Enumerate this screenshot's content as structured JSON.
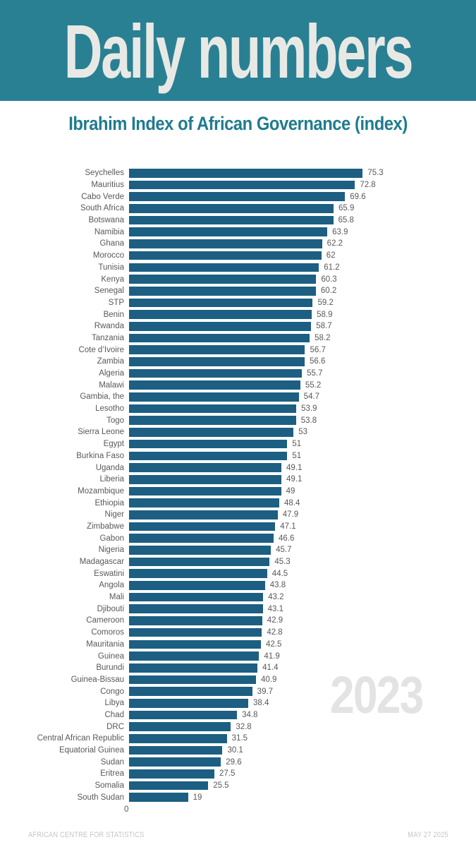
{
  "header": {
    "title": "Daily numbers"
  },
  "subtitle": "Ibrahim Index of African Governance (index)",
  "watermark": "2023",
  "axis": {
    "zero_label": "0"
  },
  "footer": {
    "source": "AFRICAN CENTRE FOR STATISTICS",
    "date": "MAY 27 2025"
  },
  "colors": {
    "header_bg": "#2a8093",
    "title_text": "#e8e9e5",
    "subtitle_text": "#1f7b8e",
    "bar": "#1c5f82",
    "label_text": "#595959",
    "watermark_text": "#e3e3e3",
    "footer_text": "#c6c6c6"
  },
  "chart_data": {
    "type": "bar",
    "orientation": "horizontal",
    "title": "Ibrahim Index of African Governance (index)",
    "xlabel": "",
    "ylabel": "",
    "xlim": [
      0,
      80
    ],
    "grid": false,
    "legend": false,
    "value_labels_shown": true,
    "categories": [
      "Seychelles",
      "Mauritius",
      "Cabo Verde",
      "South Africa",
      "Botswana",
      "Namibia",
      "Ghana",
      "Morocco",
      "Tunisia",
      "Kenya",
      "Senegal",
      "STP",
      "Benin",
      "Rwanda",
      "Tanzania",
      "Cote d’Ivoire",
      "Zambia",
      "Algeria",
      "Malawi",
      "Gambia, the",
      "Lesotho",
      "Togo",
      "Sierra Leone",
      "Egypt",
      "Burkina Faso",
      "Uganda",
      "Liberia",
      "Mozambique",
      "Ethiopia",
      "Niger",
      "Zimbabwe",
      "Gabon",
      "Nigeria",
      "Madagascar",
      "Eswatini",
      "Angola",
      "Mali",
      "Djibouti",
      "Cameroon",
      "Comoros",
      "Mauritania",
      "Guinea",
      "Burundi",
      "Guinea-Bissau",
      "Congo",
      "Libya",
      "Chad",
      "DRC",
      "Central African Republic",
      "Equatorial Guinea",
      "Sudan",
      "Eritrea",
      "Somalia",
      "South Sudan"
    ],
    "values": [
      75.3,
      72.8,
      69.6,
      65.9,
      65.8,
      63.9,
      62.2,
      62,
      61.2,
      60.3,
      60.2,
      59.2,
      58.9,
      58.7,
      58.2,
      56.7,
      56.6,
      55.7,
      55.2,
      54.7,
      53.9,
      53.8,
      53,
      51,
      51,
      49.1,
      49.1,
      49,
      48.4,
      47.9,
      47.1,
      46.6,
      45.7,
      45.3,
      44.5,
      43.8,
      43.2,
      43.1,
      42.9,
      42.8,
      42.5,
      41.9,
      41.4,
      40.9,
      39.7,
      38.4,
      34.8,
      32.8,
      31.5,
      30.1,
      29.6,
      27.5,
      25.5,
      19
    ],
    "value_labels": [
      "75.3",
      "72.8",
      "69.6",
      "65.9",
      "65.8",
      "63.9",
      "62.2",
      "62",
      "61.2",
      "60.3",
      "60.2",
      "59.2",
      "58.9",
      "58.7",
      "58.2",
      "56.7",
      "56.6",
      "55.7",
      "55.2",
      "54.7",
      "53.9",
      "53.8",
      "53",
      "51",
      "51",
      "49.1",
      "49.1",
      "49",
      "48.4",
      "47.9",
      "47.1",
      "46.6",
      "45.7",
      "45.3",
      "44.5",
      "43.8",
      "43.2",
      "43.1",
      "42.9",
      "42.8",
      "42.5",
      "41.9",
      "41.4",
      "40.9",
      "39.7",
      "38.4",
      "34.8",
      "32.8",
      "31.5",
      "30.1",
      "29.6",
      "27.5",
      "25.5",
      "19"
    ]
  }
}
